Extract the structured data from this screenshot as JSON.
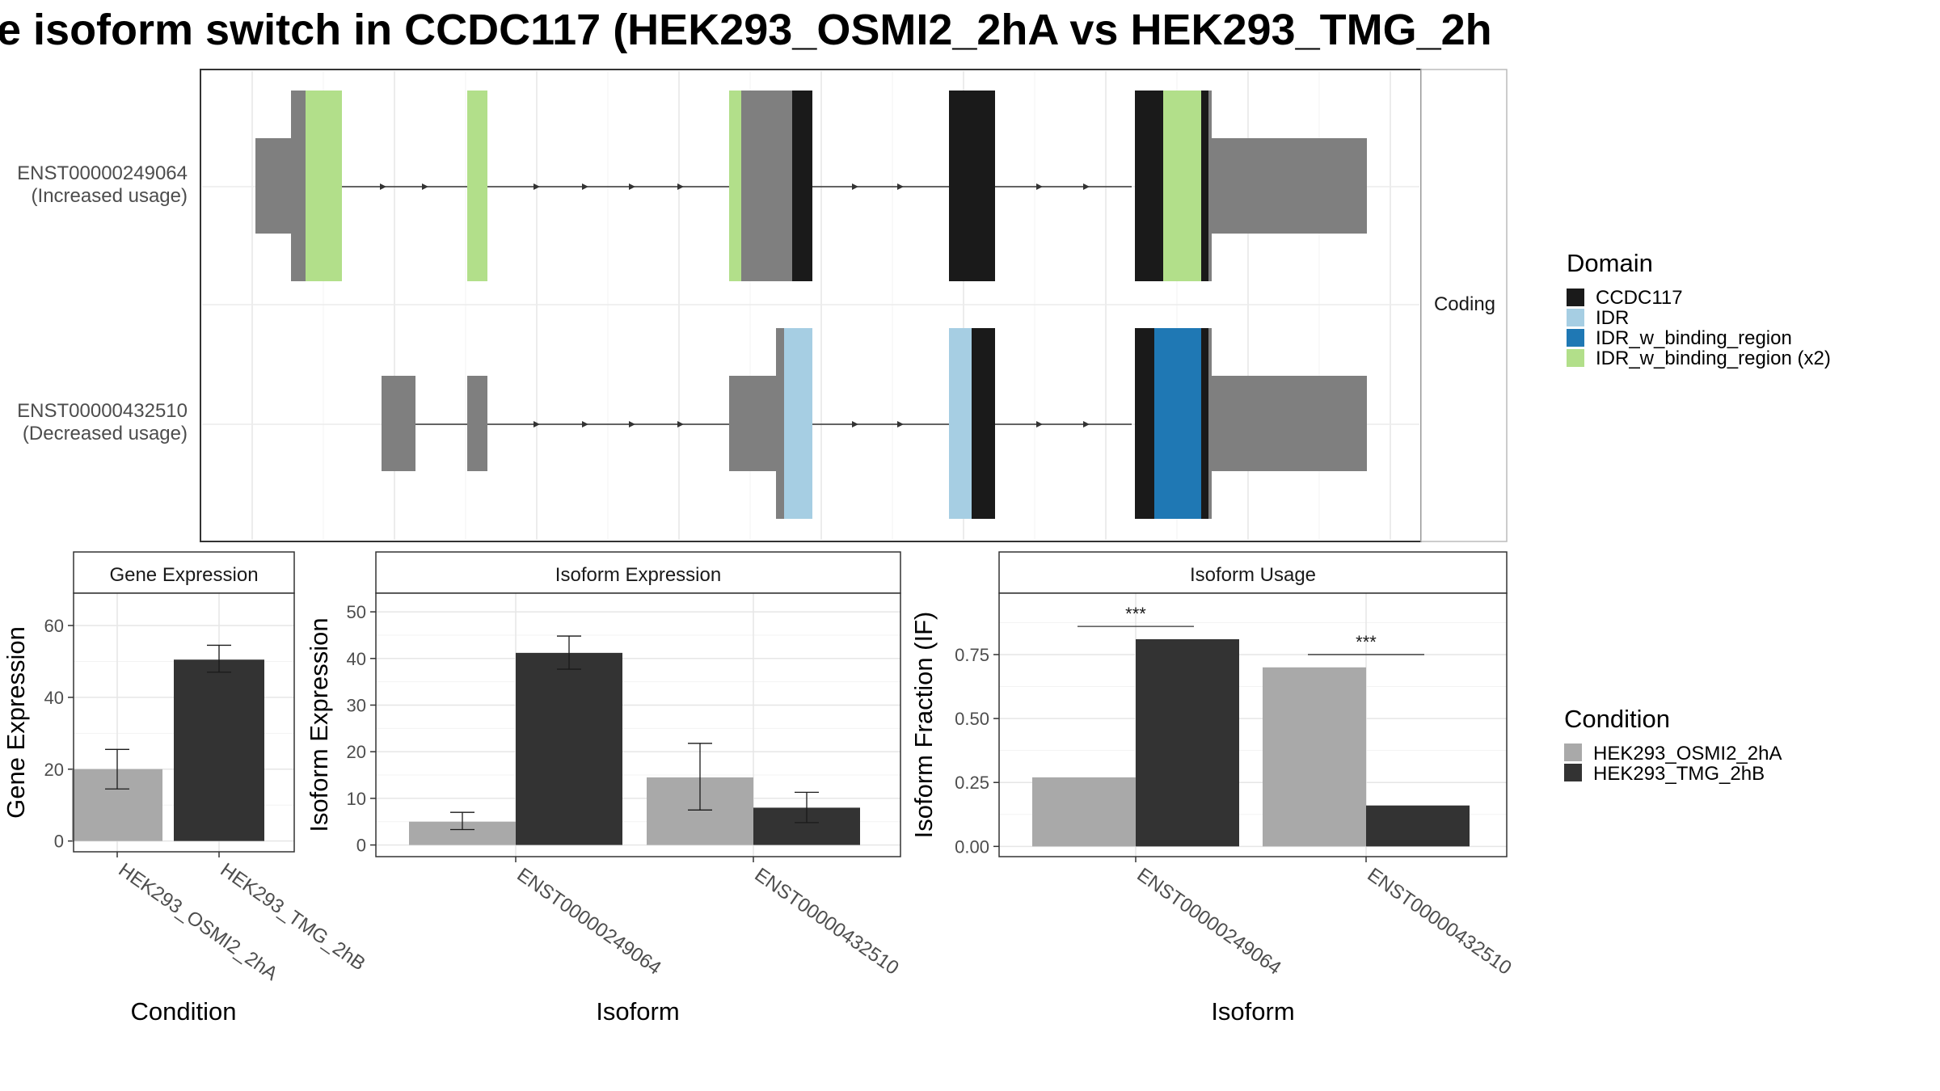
{
  "title": "e isoform switch in CCDC117 (HEK293_OSMI2_2hA vs HEK293_TMG_2h",
  "colors": {
    "CCDC117": "#1a1a1a",
    "IDR": "#a6cee3",
    "IDR_w_binding_region": "#1f78b4",
    "IDR_w_binding_region (x2)": "#b2df8a",
    "exon": "#7f7f7f",
    "cond1": "#a9a9a9",
    "cond2": "#333333"
  },
  "transcript_panel": {
    "strip_label": "Coding",
    "transcripts": [
      {
        "id": "ENST00000249064",
        "label": "(Increased usage)"
      },
      {
        "id": "ENST00000432510",
        "label": "(Decreased usage)"
      }
    ]
  },
  "legend_domain": {
    "title": "Domain",
    "items": [
      "CCDC117",
      "IDR",
      "IDR_w_binding_region",
      "IDR_w_binding_region (x2)"
    ]
  },
  "legend_condition": {
    "title": "Condition",
    "items": [
      "HEK293_OSMI2_2hA",
      "HEK293_TMG_2hB"
    ]
  },
  "chart_data": [
    {
      "type": "bar",
      "title": "Gene Expression",
      "xlabel": "Condition",
      "ylabel": "Gene Expression",
      "categories": [
        "HEK293_OSMI2_2hA",
        "HEK293_TMG_2hB"
      ],
      "values": [
        20,
        50.5
      ],
      "error_low": [
        14.5,
        47
      ],
      "error_high": [
        25.5,
        54.5
      ],
      "ylim": [
        -3,
        69
      ],
      "yticks": [
        0,
        20,
        40,
        60
      ]
    },
    {
      "type": "bar",
      "title": "Isoform Expression",
      "xlabel": "Isoform",
      "ylabel": "Isoform Expression",
      "categories": [
        "ENST00000249064",
        "ENST00000432510"
      ],
      "series": [
        {
          "name": "HEK293_OSMI2_2hA",
          "values": [
            5,
            14.5
          ],
          "error_low": [
            3.3,
            7.5
          ],
          "error_high": [
            7,
            21.8
          ]
        },
        {
          "name": "HEK293_TMG_2hB",
          "values": [
            41.2,
            8
          ],
          "error_low": [
            37.7,
            4.8
          ],
          "error_high": [
            44.8,
            11.3
          ]
        }
      ],
      "ylim": [
        -2.5,
        54
      ],
      "yticks": [
        0,
        10,
        20,
        30,
        40,
        50
      ]
    },
    {
      "type": "bar",
      "title": "Isoform Usage",
      "xlabel": "Isoform",
      "ylabel": "Isoform Fraction (IF)",
      "categories": [
        "ENST00000249064",
        "ENST00000432510"
      ],
      "series": [
        {
          "name": "HEK293_OSMI2_2hA",
          "values": [
            0.27,
            0.7
          ]
        },
        {
          "name": "HEK293_TMG_2hB",
          "values": [
            0.81,
            0.16
          ]
        }
      ],
      "significance": [
        "***",
        "***"
      ],
      "ylim": [
        -0.04,
        0.99
      ],
      "yticks": [
        "0.00",
        "0.25",
        "0.50",
        "0.75"
      ]
    }
  ]
}
